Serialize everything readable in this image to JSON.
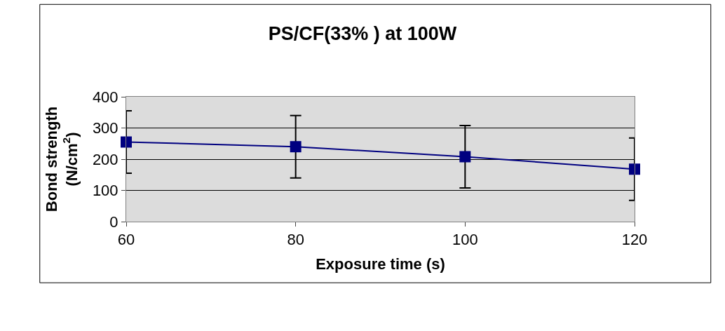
{
  "chart_data": {
    "type": "line",
    "title": "PS/CF(33% ) at 100W",
    "xlabel": "Exposure time (s)",
    "ylabel": "Bond strength (N/cm$^{2}$)",
    "x": [
      60,
      80,
      100,
      120
    ],
    "series": [
      {
        "color": "#000080",
        "values": [
          255,
          240,
          208,
          168
        ],
        "errors": [
          100,
          100,
          100,
          100
        ]
      }
    ],
    "xlim": [
      60,
      120
    ],
    "xticks": [
      60,
      80,
      100,
      120
    ],
    "ylim": [
      0,
      400
    ],
    "yticks": [
      0,
      100,
      200,
      300,
      400
    ],
    "grid": "y",
    "legend": false,
    "marker": "square",
    "line_style": "solid"
  }
}
